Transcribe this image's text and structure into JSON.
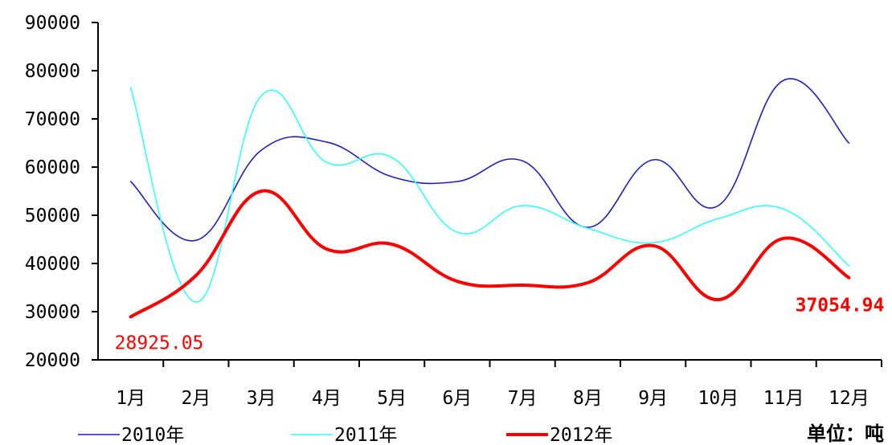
{
  "chart_data": {
    "type": "line",
    "title": "",
    "categories": [
      "1月",
      "2月",
      "3月",
      "4月",
      "5月",
      "6月",
      "7月",
      "8月",
      "9月",
      "10月",
      "11月",
      "12月"
    ],
    "ylim": [
      20000,
      90000
    ],
    "yticks": [
      "90000",
      "80000",
      "70000",
      "60000",
      "50000",
      "40000",
      "30000",
      "20000"
    ],
    "grid": false,
    "legend_position": "bottom",
    "unit_label": "单位：吨",
    "series": [
      {
        "name": "2010年",
        "color": "#1f1fbf",
        "values": [
          57000,
          44800,
          63500,
          65200,
          58000,
          57000,
          61300,
          47500,
          61500,
          52000,
          78000,
          65000
        ]
      },
      {
        "name": "2011年",
        "color": "#33ffff",
        "values": [
          76500,
          32000,
          74800,
          61000,
          62000,
          46500,
          52000,
          47300,
          44300,
          49300,
          51300,
          39500
        ]
      },
      {
        "name": "2012年",
        "color": "#ff0000",
        "values": [
          28925.05,
          37500,
          55000,
          43000,
          44000,
          36300,
          35500,
          36000,
          43700,
          32500,
          45200,
          37054.94
        ]
      }
    ],
    "data_labels": [
      {
        "series": "2012年",
        "index": 0,
        "text": "28925.05"
      },
      {
        "series": "2012年",
        "index": 11,
        "text": "37054.94"
      }
    ]
  }
}
